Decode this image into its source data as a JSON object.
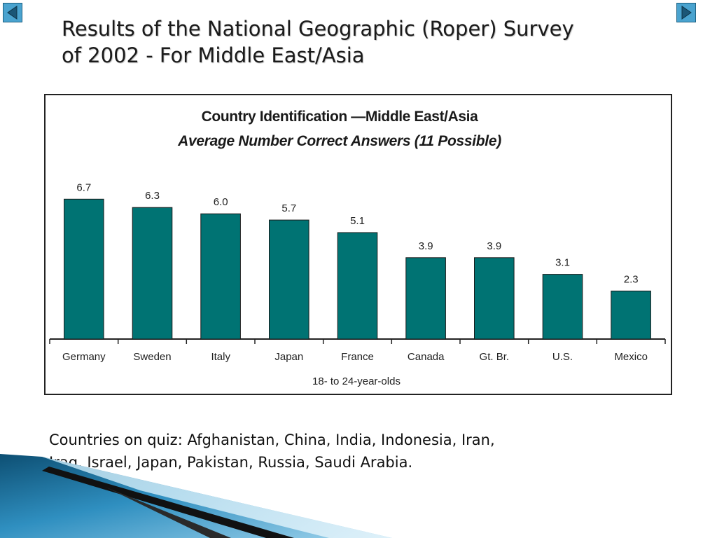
{
  "slide": {
    "title_line1": "Results of the National Geographic (Roper) Survey",
    "title_line2": "of 2002 - For Middle East/Asia",
    "caption_line1": "Countries on quiz: Afghanistan, China, India, Indonesia, Iran,",
    "caption_line2": "Iraq, Israel, Japan, Pakistan, Russia, Saudi Arabia."
  },
  "nav": {
    "prev_icon": "triangle-left-icon",
    "next_icon": "triangle-right-icon",
    "button_color": "#4aa3cf"
  },
  "chart_data": {
    "type": "bar",
    "title": "Country Identification —Middle East/Asia",
    "subtitle": "Average Number Correct Answers (11 Possible)",
    "xlabel": "18- to 24-year-olds",
    "ylabel": "",
    "categories": [
      "Germany",
      "Sweden",
      "Italy",
      "Japan",
      "France",
      "Canada",
      "Gt. Br.",
      "U.S.",
      "Mexico"
    ],
    "values": [
      6.7,
      6.3,
      6.0,
      5.7,
      5.1,
      3.9,
      3.9,
      3.1,
      2.3
    ],
    "value_labels": [
      "6.7",
      "6.3",
      "6.0",
      "5.7",
      "5.1",
      "3.9",
      "3.9",
      "3.1",
      "2.3"
    ],
    "ylim": [
      0,
      11
    ],
    "grid": false,
    "legend": "none",
    "bar_color": "#007373"
  }
}
